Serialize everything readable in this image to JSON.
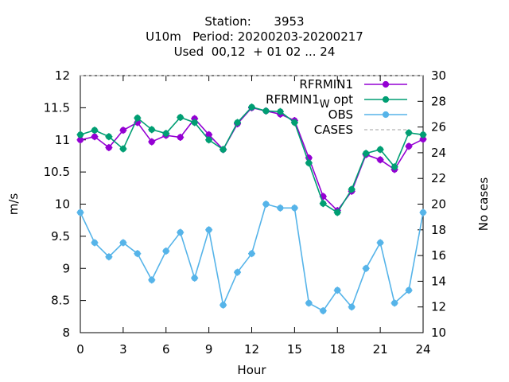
{
  "chart_data": {
    "type": "line",
    "title_lines": [
      "Station:      3953",
      "U10m   Period: 20200203-20200217",
      "Used  00,12  + 01 02 ... 24"
    ],
    "xlabel": "Hour",
    "ylabel": "m/s",
    "y2label": "No cases",
    "xlim": [
      0,
      24
    ],
    "ylim": [
      8,
      12
    ],
    "y2lim": [
      10,
      30
    ],
    "xticks": [
      0,
      3,
      6,
      9,
      12,
      15,
      18,
      21,
      24
    ],
    "yticks": [
      8,
      8.5,
      9,
      9.5,
      10,
      10.5,
      11,
      11.5,
      12
    ],
    "y2ticks": [
      10,
      12,
      14,
      16,
      18,
      20,
      22,
      24,
      26,
      28,
      30
    ],
    "legend_position": "top-right",
    "x": [
      0,
      1,
      2,
      3,
      4,
      5,
      6,
      7,
      8,
      9,
      10,
      11,
      12,
      13,
      14,
      15,
      16,
      17,
      18,
      19,
      20,
      21,
      22,
      23,
      24
    ],
    "series": [
      {
        "name": "RFRMIN1",
        "color": "#9400d3",
        "axis": "y",
        "values": [
          11.0,
          11.05,
          10.88,
          11.15,
          11.27,
          10.97,
          11.07,
          11.04,
          11.33,
          11.08,
          10.85,
          11.25,
          11.5,
          11.45,
          11.4,
          11.3,
          10.72,
          10.12,
          9.9,
          10.2,
          10.77,
          10.69,
          10.54,
          10.9,
          11.01
        ]
      },
      {
        "name": "RFRMIN1",
        "name_subscript": "W",
        "name_suffix": " opt",
        "color": "#009e73",
        "axis": "y",
        "values": [
          11.08,
          11.15,
          11.05,
          10.86,
          11.34,
          11.16,
          11.1,
          11.35,
          11.27,
          11.0,
          10.85,
          11.27,
          11.51,
          11.45,
          11.44,
          11.27,
          10.64,
          10.01,
          9.87,
          10.23,
          10.79,
          10.85,
          10.58,
          11.11,
          11.08
        ]
      },
      {
        "name": "OBS",
        "color": "#56b4e9",
        "axis": "y",
        "values": [
          9.87,
          9.4,
          9.18,
          9.4,
          9.23,
          8.82,
          9.27,
          9.56,
          8.85,
          9.6,
          8.43,
          8.94,
          9.23,
          10.0,
          9.94,
          9.94,
          8.46,
          8.34,
          8.66,
          8.4,
          9.0,
          9.4,
          8.46,
          8.66,
          9.87
        ]
      },
      {
        "name": "CASES",
        "color": "#a0a0a0",
        "dashed": true,
        "axis": "y2",
        "values": [
          30,
          30,
          30,
          30,
          30,
          30,
          30,
          30,
          30,
          30,
          30,
          30,
          30,
          30,
          30,
          30,
          30,
          30,
          30,
          30,
          30,
          30,
          30,
          30,
          30
        ]
      }
    ]
  }
}
